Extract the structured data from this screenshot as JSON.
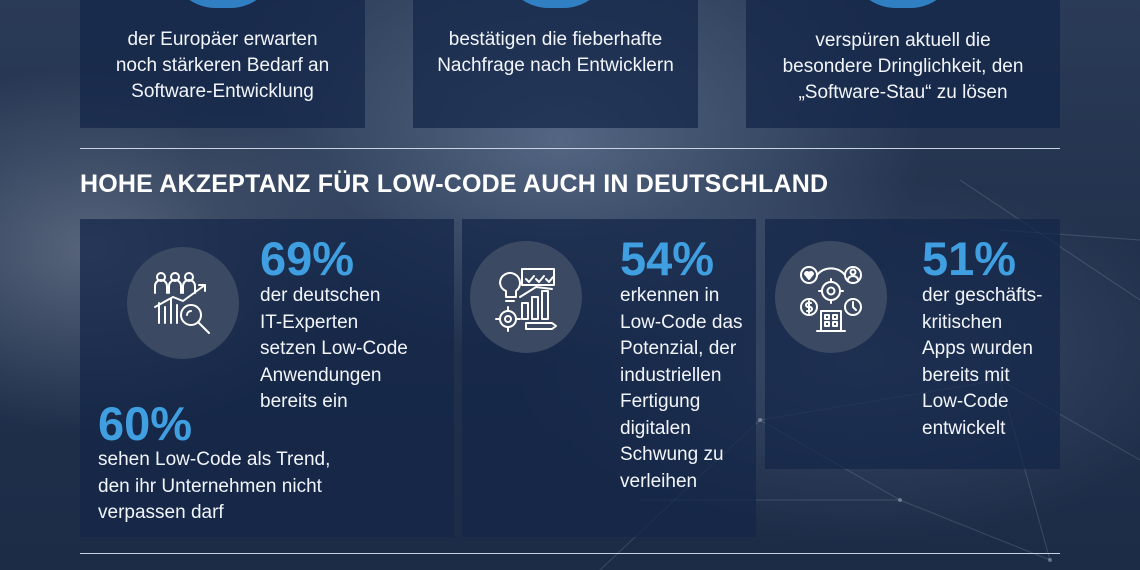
{
  "top_cards": [
    {
      "text": [
        "der Europäer erwarten",
        "noch stärkeren Bedarf an",
        "Software-Entwicklung"
      ]
    },
    {
      "text": [
        "bestätigen die fieberhafte",
        "Nachfrage nach Entwicklern"
      ]
    },
    {
      "text": [
        "verspüren aktuell die",
        "besondere Dringlichkeit, den",
        "„Software-Stau“ zu lösen"
      ]
    }
  ],
  "section": {
    "heading": "HOHE AKZEPTANZ FÜR LOW-CODE AUCH IN DEUTSCHLAND"
  },
  "stats": [
    {
      "value": "69%",
      "lines": [
        "der deutschen",
        "IT-Experten",
        "setzen Low-Code",
        "Anwendungen",
        "bereits ein"
      ],
      "icon": "experts-analysis-icon"
    },
    {
      "value": "60%",
      "lines": [
        "sehen Low-Code als Trend,",
        "den ihr Unternehmen nicht",
        "verpassen darf"
      ]
    },
    {
      "value": "54%",
      "lines": [
        "erkennen in",
        "Low-Code das",
        "Potenzial, der",
        "industriellen",
        "Fertigung",
        "digitalen",
        "Schwung zu",
        "verleihen"
      ],
      "icon": "innovation-chart-icon"
    },
    {
      "value": "51%",
      "lines": [
        "der geschäfts-",
        "kritischen",
        "Apps wurden",
        "bereits mit",
        "Low-Code",
        "entwickelt"
      ],
      "icon": "business-network-icon"
    }
  ],
  "colors": {
    "accent": "#3f9fe0",
    "panel": "#142648",
    "icon_bg": "#3b4a62"
  }
}
